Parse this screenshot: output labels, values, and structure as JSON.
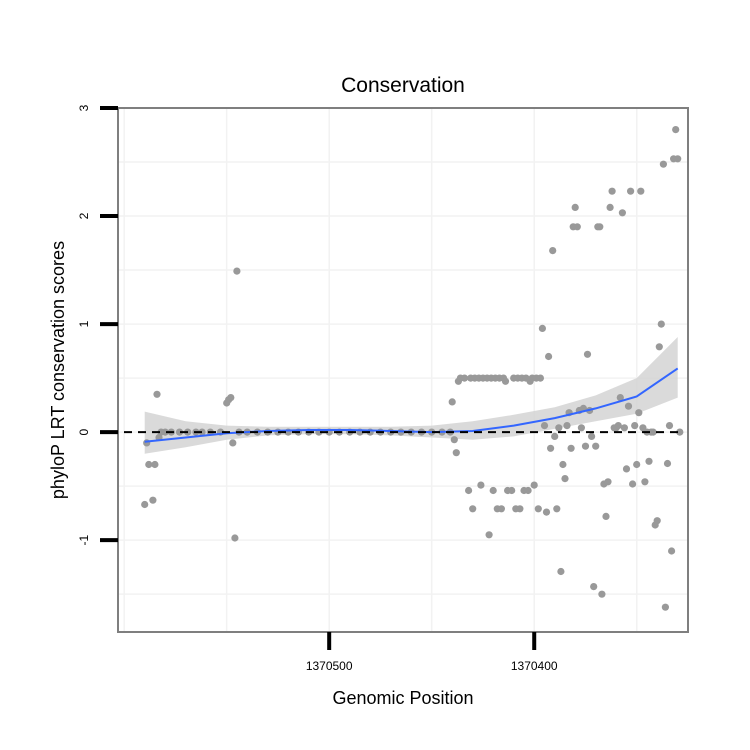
{
  "chart_data": {
    "type": "scatter",
    "title": "Conservation",
    "xlabel": "Genomic Position",
    "ylabel": "phyloP LRT conservation scores",
    "x_reversed": true,
    "xlim": [
      1370603,
      1370325
    ],
    "ylim": [
      -1.85,
      3.0
    ],
    "x_ticks": [
      1370500,
      1370400
    ],
    "x_tick_labels": [
      "1370500",
      "1370400"
    ],
    "y_ticks": [
      -1,
      0,
      1,
      2,
      3
    ],
    "y_tick_labels": [
      "-1",
      "0",
      "1",
      "2",
      "3"
    ],
    "grid": true,
    "reference_line": {
      "y": 0,
      "style": "dashed"
    },
    "colors": {
      "points": "#999999",
      "smooth_line": "#3366ff",
      "ribbon": "#d4d4d4",
      "panel_border": "#7f7f7f",
      "grid": "#f2f2f2"
    },
    "points": [
      {
        "x": 1370590,
        "y": -0.67
      },
      {
        "x": 1370589,
        "y": -0.1
      },
      {
        "x": 1370588,
        "y": -0.3
      },
      {
        "x": 1370586,
        "y": -0.63
      },
      {
        "x": 1370585,
        "y": -0.3
      },
      {
        "x": 1370584,
        "y": 0.35
      },
      {
        "x": 1370583,
        "y": -0.05
      },
      {
        "x": 1370582,
        "y": 0.0
      },
      {
        "x": 1370580,
        "y": 0.0
      },
      {
        "x": 1370577,
        "y": 0.0
      },
      {
        "x": 1370573,
        "y": 0.0
      },
      {
        "x": 1370569,
        "y": 0.0
      },
      {
        "x": 1370565,
        "y": 0.0
      },
      {
        "x": 1370562,
        "y": 0.0
      },
      {
        "x": 1370558,
        "y": 0.0
      },
      {
        "x": 1370553,
        "y": 0.0
      },
      {
        "x": 1370550,
        "y": 0.27
      },
      {
        "x": 1370549,
        "y": 0.3
      },
      {
        "x": 1370548,
        "y": 0.32
      },
      {
        "x": 1370547,
        "y": -0.1
      },
      {
        "x": 1370546,
        "y": -0.98
      },
      {
        "x": 1370545,
        "y": 1.49
      },
      {
        "x": 1370544,
        "y": 0.0
      },
      {
        "x": 1370540,
        "y": 0.0
      },
      {
        "x": 1370535,
        "y": 0.0
      },
      {
        "x": 1370530,
        "y": 0.0
      },
      {
        "x": 1370525,
        "y": 0.0
      },
      {
        "x": 1370520,
        "y": 0.0
      },
      {
        "x": 1370515,
        "y": 0.0
      },
      {
        "x": 1370510,
        "y": 0.0
      },
      {
        "x": 1370505,
        "y": 0.0
      },
      {
        "x": 1370500,
        "y": 0.0
      },
      {
        "x": 1370495,
        "y": 0.0
      },
      {
        "x": 1370490,
        "y": 0.0
      },
      {
        "x": 1370485,
        "y": 0.0
      },
      {
        "x": 1370480,
        "y": 0.0
      },
      {
        "x": 1370475,
        "y": 0.0
      },
      {
        "x": 1370470,
        "y": 0.0
      },
      {
        "x": 1370465,
        "y": 0.0
      },
      {
        "x": 1370460,
        "y": 0.0
      },
      {
        "x": 1370455,
        "y": 0.0
      },
      {
        "x": 1370450,
        "y": 0.0
      },
      {
        "x": 1370445,
        "y": 0.0
      },
      {
        "x": 1370441,
        "y": 0.0
      },
      {
        "x": 1370440,
        "y": 0.28
      },
      {
        "x": 1370439,
        "y": -0.07
      },
      {
        "x": 1370438,
        "y": -0.19
      },
      {
        "x": 1370437,
        "y": 0.47
      },
      {
        "x": 1370436,
        "y": 0.5
      },
      {
        "x": 1370434,
        "y": 0.5
      },
      {
        "x": 1370432,
        "y": -0.54
      },
      {
        "x": 1370431,
        "y": 0.5
      },
      {
        "x": 1370430,
        "y": -0.71
      },
      {
        "x": 1370429,
        "y": 0.5
      },
      {
        "x": 1370427,
        "y": 0.5
      },
      {
        "x": 1370426,
        "y": -0.49
      },
      {
        "x": 1370425,
        "y": 0.5
      },
      {
        "x": 1370423,
        "y": 0.5
      },
      {
        "x": 1370422,
        "y": -0.95
      },
      {
        "x": 1370421,
        "y": 0.5
      },
      {
        "x": 1370420,
        "y": -0.54
      },
      {
        "x": 1370419,
        "y": 0.5
      },
      {
        "x": 1370418,
        "y": -0.71
      },
      {
        "x": 1370417,
        "y": 0.5
      },
      {
        "x": 1370416,
        "y": -0.71
      },
      {
        "x": 1370415,
        "y": 0.5
      },
      {
        "x": 1370414,
        "y": 0.47
      },
      {
        "x": 1370413,
        "y": -0.54
      },
      {
        "x": 1370411,
        "y": -0.54
      },
      {
        "x": 1370410,
        "y": 0.5
      },
      {
        "x": 1370409,
        "y": -0.71
      },
      {
        "x": 1370408,
        "y": 0.5
      },
      {
        "x": 1370407,
        "y": -0.71
      },
      {
        "x": 1370406,
        "y": 0.5
      },
      {
        "x": 1370405,
        "y": -0.54
      },
      {
        "x": 1370404,
        "y": 0.5
      },
      {
        "x": 1370403,
        "y": -0.54
      },
      {
        "x": 1370402,
        "y": 0.47
      },
      {
        "x": 1370401,
        "y": 0.5
      },
      {
        "x": 1370400,
        "y": -0.49
      },
      {
        "x": 1370399,
        "y": 0.5
      },
      {
        "x": 1370398,
        "y": -0.71
      },
      {
        "x": 1370397,
        "y": 0.5
      },
      {
        "x": 1370396,
        "y": 0.96
      },
      {
        "x": 1370395,
        "y": 0.06
      },
      {
        "x": 1370394,
        "y": -0.74
      },
      {
        "x": 1370393,
        "y": 0.7
      },
      {
        "x": 1370392,
        "y": -0.15
      },
      {
        "x": 1370391,
        "y": 1.68
      },
      {
        "x": 1370390,
        "y": -0.04
      },
      {
        "x": 1370389,
        "y": -0.71
      },
      {
        "x": 1370388,
        "y": 0.04
      },
      {
        "x": 1370387,
        "y": -1.29
      },
      {
        "x": 1370386,
        "y": -0.3
      },
      {
        "x": 1370385,
        "y": -0.43
      },
      {
        "x": 1370384,
        "y": 0.06
      },
      {
        "x": 1370383,
        "y": 0.18
      },
      {
        "x": 1370382,
        "y": -0.15
      },
      {
        "x": 1370381,
        "y": 1.9
      },
      {
        "x": 1370380,
        "y": 2.08
      },
      {
        "x": 1370379,
        "y": 1.9
      },
      {
        "x": 1370378,
        "y": 0.2
      },
      {
        "x": 1370377,
        "y": 0.04
      },
      {
        "x": 1370376,
        "y": 0.22
      },
      {
        "x": 1370375,
        "y": -0.13
      },
      {
        "x": 1370374,
        "y": 0.72
      },
      {
        "x": 1370373,
        "y": 0.2
      },
      {
        "x": 1370372,
        "y": -0.04
      },
      {
        "x": 1370371,
        "y": -1.43
      },
      {
        "x": 1370370,
        "y": -0.13
      },
      {
        "x": 1370369,
        "y": 1.9
      },
      {
        "x": 1370368,
        "y": 1.9
      },
      {
        "x": 1370367,
        "y": -1.5
      },
      {
        "x": 1370366,
        "y": -0.48
      },
      {
        "x": 1370365,
        "y": -0.78
      },
      {
        "x": 1370364,
        "y": -0.46
      },
      {
        "x": 1370363,
        "y": 2.08
      },
      {
        "x": 1370362,
        "y": 2.23
      },
      {
        "x": 1370361,
        "y": 0.04
      },
      {
        "x": 1370360,
        "y": 0.04
      },
      {
        "x": 1370359,
        "y": 0.06
      },
      {
        "x": 1370358,
        "y": 0.32
      },
      {
        "x": 1370357,
        "y": 2.03
      },
      {
        "x": 1370356,
        "y": 0.04
      },
      {
        "x": 1370355,
        "y": -0.34
      },
      {
        "x": 1370354,
        "y": 0.24
      },
      {
        "x": 1370353,
        "y": 2.23
      },
      {
        "x": 1370352,
        "y": -0.48
      },
      {
        "x": 1370351,
        "y": 0.06
      },
      {
        "x": 1370350,
        "y": -0.3
      },
      {
        "x": 1370349,
        "y": 0.18
      },
      {
        "x": 1370348,
        "y": 2.23
      },
      {
        "x": 1370347,
        "y": 0.04
      },
      {
        "x": 1370346,
        "y": -0.46
      },
      {
        "x": 1370345,
        "y": 0.0
      },
      {
        "x": 1370344,
        "y": -0.27
      },
      {
        "x": 1370343,
        "y": 0.0
      },
      {
        "x": 1370342,
        "y": 0.0
      },
      {
        "x": 1370341,
        "y": -0.86
      },
      {
        "x": 1370340,
        "y": -0.82
      },
      {
        "x": 1370339,
        "y": 0.79
      },
      {
        "x": 1370338,
        "y": 1.0
      },
      {
        "x": 1370337,
        "y": 2.48
      },
      {
        "x": 1370336,
        "y": -1.62
      },
      {
        "x": 1370335,
        "y": -0.29
      },
      {
        "x": 1370334,
        "y": 0.06
      },
      {
        "x": 1370333,
        "y": -1.1
      },
      {
        "x": 1370332,
        "y": 2.53
      },
      {
        "x": 1370331,
        "y": 2.8
      },
      {
        "x": 1370330,
        "y": 2.53
      },
      {
        "x": 1370329,
        "y": 0.0
      }
    ],
    "smooth": [
      {
        "x": 1370590,
        "y": -0.09,
        "lo": -0.2,
        "hi": 0.19
      },
      {
        "x": 1370570,
        "y": -0.05,
        "lo": -0.14,
        "hi": 0.1
      },
      {
        "x": 1370550,
        "y": -0.01,
        "lo": -0.07,
        "hi": 0.06
      },
      {
        "x": 1370530,
        "y": 0.01,
        "lo": -0.03,
        "hi": 0.05
      },
      {
        "x": 1370510,
        "y": 0.02,
        "lo": -0.02,
        "hi": 0.05
      },
      {
        "x": 1370490,
        "y": 0.02,
        "lo": -0.02,
        "hi": 0.05
      },
      {
        "x": 1370470,
        "y": 0.01,
        "lo": -0.03,
        "hi": 0.05
      },
      {
        "x": 1370450,
        "y": 0.0,
        "lo": -0.05,
        "hi": 0.06
      },
      {
        "x": 1370430,
        "y": 0.01,
        "lo": -0.07,
        "hi": 0.1
      },
      {
        "x": 1370410,
        "y": 0.06,
        "lo": -0.04,
        "hi": 0.16
      },
      {
        "x": 1370390,
        "y": 0.13,
        "lo": 0.03,
        "hi": 0.23
      },
      {
        "x": 1370370,
        "y": 0.22,
        "lo": 0.1,
        "hi": 0.34
      },
      {
        "x": 1370350,
        "y": 0.33,
        "lo": 0.17,
        "hi": 0.5
      },
      {
        "x": 1370330,
        "y": 0.59,
        "lo": 0.32,
        "hi": 0.88
      }
    ]
  }
}
